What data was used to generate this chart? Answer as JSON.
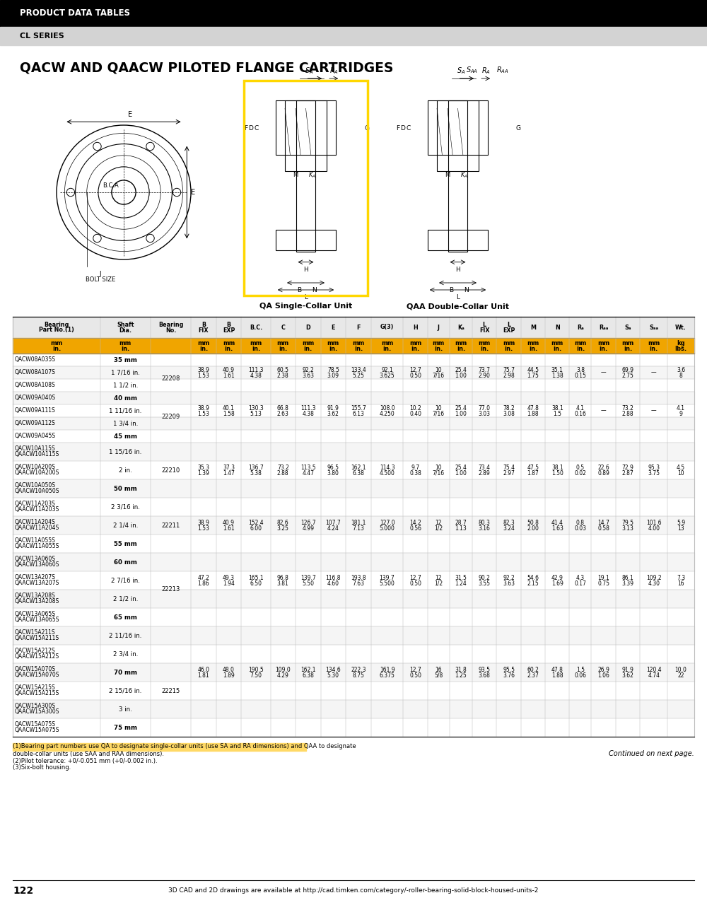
{
  "header_title": "PRODUCT DATA TABLES",
  "sub_header": "CL SERIES",
  "section_title": "QACW AND QAACW PILOTED FLANGE CARTRIDGES",
  "page_number": "122",
  "page_url": "3D CAD and 2D drawings are available at http://cad.timken.com/category/-roller-bearing-solid-block-housed-units-2",
  "continued_text": "Continued on next page.",
  "footnotes": [
    "(1)Bearing part numbers use QA to designate single-collar units (use SA and RA dimensions) and QAA to designate",
    "double-collar units (use SAA and RAA dimensions).",
    "(2)Pilot tolerance: +0/-0.051 mm (+0/-0.002 in.).",
    "(3)Six-bolt housing."
  ],
  "rows": [
    {
      "part": "QACW08A035S",
      "shaft": "35 mm",
      "bearing": "",
      "data": false,
      "mm_label": true,
      "two_line": false
    },
    {
      "part": "QACW08A107S",
      "shaft": "1 7/16 in.",
      "bearing": "22208",
      "data": true,
      "mm_label": false,
      "two_line": false,
      "b_fix": "38.9\n1.53",
      "b_exp": "40.9\n1.61",
      "bc": "111.3\n4.38",
      "c": "60.5\n2.38",
      "d": "92.2\n3.63",
      "e": "78.5\n3.09",
      "f": "133.4\n5.25",
      "g": "92.1\n3.625",
      "h": "12.7\n0.50",
      "j": "10\n7/16",
      "ka": "25.4\n1.00",
      "l_fix": "73.7\n2.90",
      "l_exp": "75.7\n2.98",
      "m": "44.5\n1.75",
      "n": "35.1\n1.38",
      "ra": "3.8\n0.15",
      "raa": "—",
      "sa": "69.9\n2.75",
      "saa": "—",
      "wt": "3.6\n8"
    },
    {
      "part": "QACW08A108S",
      "shaft": "1 1/2 in.",
      "bearing": "",
      "data": false,
      "mm_label": false,
      "two_line": false
    },
    {
      "part": "QACW09A040S",
      "shaft": "40 mm",
      "bearing": "",
      "data": false,
      "mm_label": true,
      "two_line": false
    },
    {
      "part": "QACW09A111S",
      "shaft": "1 11/16 in.",
      "bearing": "22209",
      "data": true,
      "mm_label": false,
      "two_line": false,
      "b_fix": "38.9\n1.53",
      "b_exp": "40.1\n1.58",
      "bc": "130.3\n5.13",
      "c": "66.8\n2.63",
      "d": "111.3\n4.38",
      "e": "91.9\n3.62",
      "f": "155.7\n6.13",
      "g": "108.0\n4.250",
      "h": "10.2\n0.40",
      "j": "10\n7/16",
      "ka": "25.4\n1.00",
      "l_fix": "77.0\n3.03",
      "l_exp": "78.2\n3.08",
      "m": "47.8\n1.88",
      "n": "38.1\n1.5",
      "ra": "4.1\n0.16",
      "raa": "—",
      "sa": "73.2\n2.88",
      "saa": "—",
      "wt": "4.1\n9"
    },
    {
      "part": "QACW09A112S",
      "shaft": "1 3/4 in.",
      "bearing": "",
      "data": false,
      "mm_label": false,
      "two_line": false
    },
    {
      "part": "QACW09A045S",
      "shaft": "45 mm",
      "bearing": "",
      "data": false,
      "mm_label": true,
      "two_line": false
    },
    {
      "part": "QACW10A115S",
      "shaft": "1 15/16 in.",
      "bearing": "",
      "data": false,
      "mm_label": false,
      "two_line": true,
      "part2": "QAACW10A115S"
    },
    {
      "part": "QACW10A200S",
      "shaft": "2 in.",
      "bearing": "22210",
      "data": true,
      "mm_label": false,
      "two_line": true,
      "part2": "QAACW10A200S",
      "b_fix": "35.3\n1.39",
      "b_exp": "37.3\n1.47",
      "bc": "136.7\n5.38",
      "c": "73.2\n2.88",
      "d": "113.5\n4.47",
      "e": "96.5\n3.80",
      "f": "162.1\n6.38",
      "g": "114.3\n4.500",
      "h": "9.7\n0.38",
      "j": "10\n7/16",
      "ka": "25.4\n1.00",
      "l_fix": "73.4\n2.89",
      "l_exp": "75.4\n2.97",
      "m": "47.5\n1.87",
      "n": "38.1\n1.50",
      "ra": "0.5\n0.02",
      "raa": "22.6\n0.89",
      "sa": "72.9\n2.87",
      "saa": "95.3\n3.75",
      "wt": "4.5\n10"
    },
    {
      "part": "QACW10A050S",
      "shaft": "50 mm",
      "bearing": "",
      "data": false,
      "mm_label": true,
      "two_line": true,
      "part2": "QAACW10A050S"
    },
    {
      "part": "QACW11A203S",
      "shaft": "2 3/16 in.",
      "bearing": "",
      "data": false,
      "mm_label": false,
      "two_line": true,
      "part2": "QAACW11A203S"
    },
    {
      "part": "QACW11A204S",
      "shaft": "2 1/4 in.",
      "bearing": "22211",
      "data": true,
      "mm_label": false,
      "two_line": true,
      "part2": "QAACW11A204S",
      "b_fix": "38.9\n1.53",
      "b_exp": "40.9\n1.61",
      "bc": "152.4\n6.00",
      "c": "82.6\n3.25",
      "d": "126.7\n4.99",
      "e": "107.7\n4.24",
      "f": "181.1\n7.13",
      "g": "127.0\n5.000",
      "h": "14.2\n0.56",
      "j": "12\n1/2",
      "ka": "28.7\n1.13",
      "l_fix": "80.3\n3.16",
      "l_exp": "82.3\n3.24",
      "m": "50.8\n2.00",
      "n": "41.4\n1.63",
      "ra": "0.8\n0.03",
      "raa": "14.7\n0.58",
      "sa": "79.5\n3.13",
      "saa": "101.6\n4.00",
      "wt": "5.9\n13"
    },
    {
      "part": "QACW11A055S",
      "shaft": "55 mm",
      "bearing": "",
      "data": false,
      "mm_label": true,
      "two_line": true,
      "part2": "QAACW11A055S"
    },
    {
      "part": "QACW13A060S",
      "shaft": "60 mm",
      "bearing": "",
      "data": false,
      "mm_label": true,
      "two_line": true,
      "part2": "QAACW13A060S"
    },
    {
      "part": "QACW13A207S",
      "shaft": "2 7/16 in.",
      "bearing": "22213",
      "data": true,
      "mm_label": false,
      "two_line": true,
      "part2": "QAACW13A207S",
      "b_fix": "47.2\n1.86",
      "b_exp": "49.3\n1.94",
      "bc": "165.1\n6.50",
      "c": "96.8\n3.81",
      "d": "139.7\n5.50",
      "e": "116.8\n4.60",
      "f": "193.8\n7.63",
      "g": "139.7\n5.500",
      "h": "12.7\n0.50",
      "j": "12\n1/2",
      "ka": "31.5\n1.24",
      "l_fix": "90.2\n3.55",
      "l_exp": "92.2\n3.63",
      "m": "54.6\n2.15",
      "n": "42.9\n1.69",
      "ra": "4.3\n0.17",
      "raa": "19.1\n0.75",
      "sa": "86.1\n3.39",
      "saa": "109.2\n4.30",
      "wt": "7.3\n16"
    },
    {
      "part": "QACW13A208S",
      "shaft": "2 1/2 in.",
      "bearing": "",
      "data": false,
      "mm_label": false,
      "two_line": true,
      "part2": "QAACW13A208S"
    },
    {
      "part": "QACW13A065S",
      "shaft": "65 mm",
      "bearing": "",
      "data": false,
      "mm_label": true,
      "two_line": true,
      "part2": "QAACW13A065S"
    },
    {
      "part": "QACW15A211S",
      "shaft": "2 11/16 in.",
      "bearing": "",
      "data": false,
      "mm_label": false,
      "two_line": true,
      "part2": "QAACW15A211S"
    },
    {
      "part": "QACW15A212S",
      "shaft": "2 3/4 in.",
      "bearing": "",
      "data": false,
      "mm_label": false,
      "two_line": true,
      "part2": "QAACW15A212S"
    },
    {
      "part": "QACW15A070S",
      "shaft": "70 mm",
      "bearing": "22215",
      "data": true,
      "mm_label": true,
      "two_line": true,
      "part2": "QAACW15A070S",
      "b_fix": "46.0\n1.81",
      "b_exp": "48.0\n1.89",
      "bc": "190.5\n7.50",
      "c": "109.0\n4.29",
      "d": "162.1\n6.38",
      "e": "134.6\n5.30",
      "f": "222.3\n8.75",
      "g": "161.9\n6.375",
      "h": "12.7\n0.50",
      "j": "16\n5/8",
      "ka": "31.8\n1.25",
      "l_fix": "93.5\n3.68",
      "l_exp": "95.5\n3.76",
      "m": "60.2\n2.37",
      "n": "47.8\n1.88",
      "ra": "1.5\n0.06",
      "raa": "26.9\n1.06",
      "sa": "91.9\n3.62",
      "saa": "120.4\n4.74",
      "wt": "10.0\n22"
    },
    {
      "part": "QACW15A215S",
      "shaft": "2 15/16 in.",
      "bearing": "",
      "data": false,
      "mm_label": false,
      "two_line": true,
      "part2": "QAACW15A215S"
    },
    {
      "part": "QACW15A300S",
      "shaft": "3 in.",
      "bearing": "",
      "data": false,
      "mm_label": false,
      "two_line": true,
      "part2": "QAACW15A300S"
    },
    {
      "part": "QACW15A075S",
      "shaft": "75 mm",
      "bearing": "",
      "data": false,
      "mm_label": true,
      "two_line": true,
      "part2": "QAACW15A075S"
    }
  ],
  "colors": {
    "header_bg": "#000000",
    "header_text": "#ffffff",
    "sub_header_bg": "#d3d3d3",
    "col_header_bg": "#e8e8e8",
    "orange_bg": "#f0a500",
    "border": "#bbbbbb",
    "row_white": "#ffffff",
    "row_light": "#f5f5f5",
    "footnote_highlight": "#ffd966"
  }
}
